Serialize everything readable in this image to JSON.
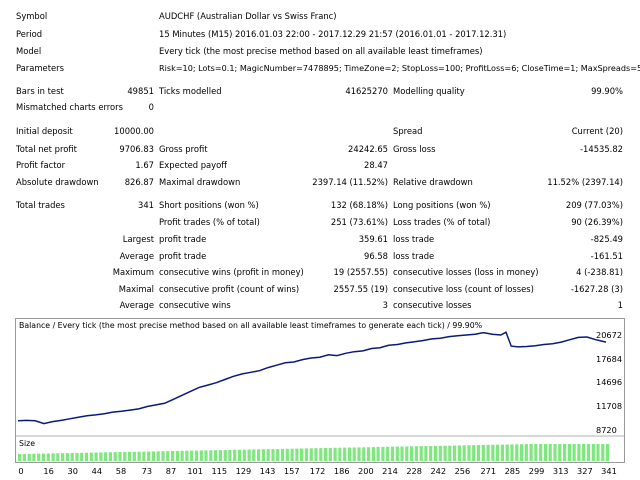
{
  "report": {
    "symbol": {
      "label": "Symbol",
      "value": "AUDCHF (Australian Dollar vs Swiss Franc)"
    },
    "period": {
      "label": "Period",
      "value": "15 Minutes (M15) 2016.01.03 22:00 - 2017.12.29 21:57 (2016.01.01 - 2017.12.31)"
    },
    "model": {
      "label": "Model",
      "value": "Every tick (the most precise method based on all available least timeframes)"
    },
    "parameters": {
      "label": "Parameters",
      "value": "Risk=10; Lots=0.1; MagicNumber=7478895; TimeZone=2; StopLoss=100; ProfitLoss=6; CloseTime=1; MaxSpreads=5;"
    },
    "bars_in_test": {
      "label": "Bars in test",
      "value": "49851"
    },
    "ticks_modelled": {
      "label": "Ticks modelled",
      "value": "41625270"
    },
    "modelling_quality": {
      "label": "Modelling quality",
      "value": "99.90%"
    },
    "mismatched": {
      "label": "Mismatched charts errors",
      "value": "0"
    },
    "initial_deposit": {
      "label": "Initial deposit",
      "value": "10000.00"
    },
    "spread": {
      "label": "Spread",
      "value": "Current (20)"
    },
    "total_net_profit": {
      "label": "Total net profit",
      "value": "9706.83"
    },
    "gross_profit": {
      "label": "Gross profit",
      "value": "24242.65"
    },
    "gross_loss": {
      "label": "Gross loss",
      "value": "-14535.82"
    },
    "profit_factor": {
      "label": "Profit factor",
      "value": "1.67"
    },
    "expected_payoff": {
      "label": "Expected payoff",
      "value": "28.47"
    },
    "absolute_drawdown": {
      "label": "Absolute drawdown",
      "value": "826.87"
    },
    "maximal_drawdown": {
      "label": "Maximal drawdown",
      "value": "2397.14 (11.52%)"
    },
    "relative_drawdown": {
      "label": "Relative drawdown",
      "value": "11.52% (2397.14)"
    },
    "total_trades": {
      "label": "Total trades",
      "value": "341"
    },
    "short_positions": {
      "label": "Short positions (won %)",
      "value": "132 (68.18%)"
    },
    "long_positions": {
      "label": "Long positions (won %)",
      "value": "209 (77.03%)"
    },
    "profit_trades": {
      "label": "Profit trades (% of total)",
      "value": "251 (73.61%)"
    },
    "loss_trades": {
      "label": "Loss trades (% of total)",
      "value": "90 (26.39%)"
    },
    "largest": {
      "label": "Largest",
      "profit_label": "profit trade",
      "profit_value": "359.61",
      "loss_label": "loss trade",
      "loss_value": "-825.49"
    },
    "average": {
      "label": "Average",
      "profit_label": "profit trade",
      "profit_value": "96.58",
      "loss_label": "loss trade",
      "loss_value": "-161.51"
    },
    "maximum": {
      "label": "Maximum",
      "wins_label": "consecutive wins (profit in money)",
      "wins_value": "19 (2557.55)",
      "losses_label": "consecutive losses (loss in money)",
      "losses_value": "4 (-238.81)"
    },
    "maximal": {
      "label": "Maximal",
      "profit_label": "consecutive profit (count of wins)",
      "profit_value": "2557.55 (19)",
      "loss_label": "consecutive loss (count of losses)",
      "loss_value": "-1627.28 (3)"
    },
    "average_consec": {
      "label": "Average",
      "wins_label": "consecutive wins",
      "wins_value": "3",
      "losses_label": "consecutive losses",
      "losses_value": "1"
    }
  },
  "chart_data": {
    "type": "line",
    "title": "Balance / Every tick (the most precise method based on all available least timeframes to generate each tick) / 99.90%",
    "volume_label": "Size",
    "xlim": [
      0,
      341
    ],
    "ylim": [
      8720,
      21300
    ],
    "y_ticks": [
      20672,
      17684,
      14696,
      11708,
      8720
    ],
    "x_ticks": [
      0,
      16,
      30,
      44,
      58,
      73,
      87,
      101,
      115,
      129,
      143,
      157,
      172,
      186,
      200,
      214,
      228,
      242,
      256,
      271,
      285,
      299,
      313,
      327,
      341
    ],
    "line_color": "#0a1a78",
    "volume_color": "#7ee87e",
    "x": [
      0,
      5,
      10,
      15,
      20,
      25,
      30,
      35,
      40,
      45,
      50,
      55,
      60,
      65,
      70,
      75,
      80,
      85,
      90,
      95,
      100,
      105,
      110,
      115,
      120,
      125,
      130,
      135,
      140,
      145,
      150,
      155,
      160,
      165,
      170,
      175,
      180,
      185,
      190,
      195,
      200,
      205,
      210,
      215,
      220,
      225,
      230,
      235,
      240,
      245,
      250,
      255,
      260,
      265,
      270,
      275,
      280,
      283,
      286,
      290,
      295,
      300,
      305,
      310,
      315,
      320,
      325,
      330,
      335,
      338,
      341
    ],
    "values": [
      10000,
      10050,
      10000,
      9650,
      9900,
      10050,
      10250,
      10450,
      10650,
      10750,
      10900,
      11100,
      11200,
      11350,
      11500,
      11800,
      12000,
      12200,
      12700,
      13200,
      13700,
      14200,
      14500,
      14800,
      15200,
      15600,
      15900,
      16100,
      16300,
      16700,
      17000,
      17300,
      17400,
      17700,
      17900,
      18000,
      18300,
      18200,
      18500,
      18700,
      18800,
      19100,
      19200,
      19500,
      19600,
      19800,
      19950,
      20100,
      20300,
      20400,
      20600,
      20700,
      20800,
      20900,
      21100,
      20900,
      20800,
      21150,
      19400,
      19300,
      19350,
      19450,
      19600,
      19700,
      19900,
      20200,
      20500,
      20550,
      20200,
      20050,
      19900
    ]
  }
}
